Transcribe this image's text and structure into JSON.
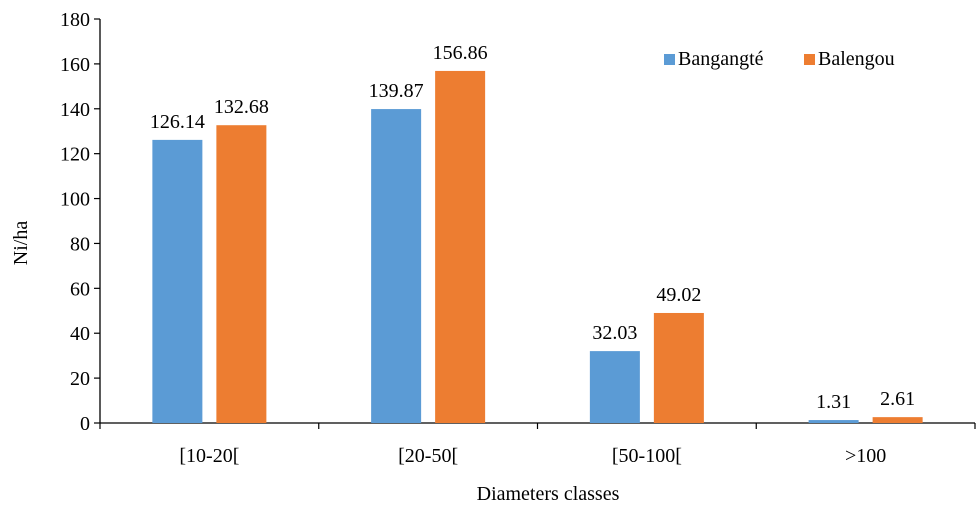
{
  "chart_data": {
    "type": "bar",
    "xlabel": "Diameters classes",
    "ylabel": "Ni/ha",
    "ylim": [
      0,
      180
    ],
    "yticks": [
      0,
      20,
      40,
      60,
      80,
      100,
      120,
      140,
      160,
      180
    ],
    "categories": [
      "[10-20[",
      "[20-50[",
      "[50-100[",
      ">100"
    ],
    "series": [
      {
        "name": "Bangangté",
        "color": "#5b9bd5",
        "values": [
          126.14,
          139.87,
          32.03,
          1.31
        ],
        "labels": [
          "126.14",
          "139.87",
          "32.03",
          "1.31"
        ]
      },
      {
        "name": "Balengou",
        "color": "#ed7d31",
        "values": [
          132.68,
          156.86,
          49.02,
          2.61
        ],
        "labels": [
          "132.68",
          "156.86",
          "49.02",
          "2.61"
        ]
      }
    ],
    "legend_position": "top-right",
    "grid": false
  }
}
